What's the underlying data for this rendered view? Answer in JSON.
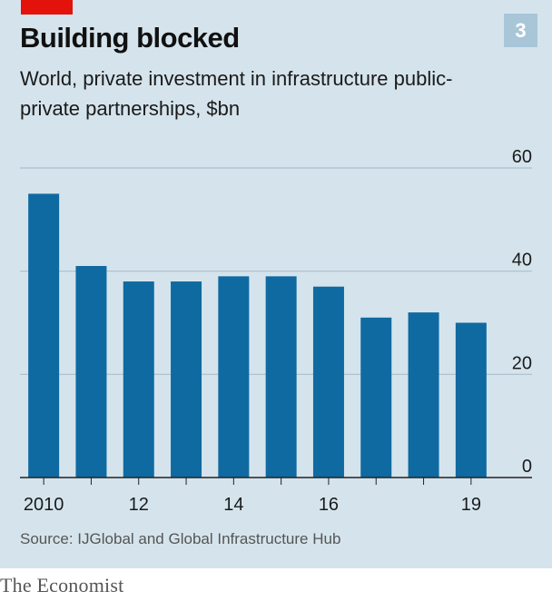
{
  "header": {
    "badge": "3",
    "title": "Building blocked",
    "subtitle": "World, private investment in infrastructure public-private partnerships, $bn"
  },
  "footer": {
    "source": "Source: IJGlobal and Global Infrastructure Hub",
    "brand": "The Economist"
  },
  "colors": {
    "bar": "#0f6aa1",
    "panel": "#d5e4ec",
    "accent": "#e3120b",
    "badge": "#a8c6d8",
    "grid": "#a9c0cd"
  },
  "chart_data": {
    "type": "bar",
    "title": "Building blocked",
    "subtitle": "World, private investment in infrastructure public-private partnerships, $bn",
    "categories": [
      "2010",
      "2011",
      "2012",
      "2013",
      "2014",
      "2015",
      "2016",
      "2017",
      "2018",
      "2019"
    ],
    "x_tick_labels": [
      "2010",
      "",
      "12",
      "",
      "14",
      "",
      "16",
      "",
      "",
      "19"
    ],
    "values": [
      55,
      41,
      38,
      38,
      39,
      39,
      37,
      31,
      32,
      30
    ],
    "y_ticks": [
      0,
      20,
      40,
      60
    ],
    "ylim": [
      0,
      60
    ],
    "y_axis_side": "right",
    "grid": true
  }
}
